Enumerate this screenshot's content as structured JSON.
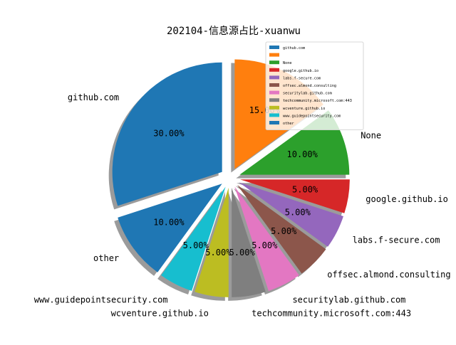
{
  "chart_data": {
    "type": "pie",
    "title": "202104-信息源占比-xuanwu",
    "slices": [
      {
        "label": "github.com",
        "value": 30.0,
        "pct_label": "30.00%",
        "color": "#1f77b4"
      },
      {
        "label": "other",
        "value": 10.0,
        "pct_label": "10.00%",
        "color": "#1f77b4"
      },
      {
        "label": "www.guidepointsecurity.com",
        "value": 5.0,
        "pct_label": "5.00%",
        "color": "#17becf"
      },
      {
        "label": "wcventure.github.io",
        "value": 5.0,
        "pct_label": "5.00%",
        "color": "#bcbd22"
      },
      {
        "label": "techcommunity.microsoft.com:443",
        "value": 5.0,
        "pct_label": "5.00%",
        "color": "#7f7f7f"
      },
      {
        "label": "securitylab.github.com",
        "value": 5.0,
        "pct_label": "5.00%",
        "color": "#e377c2"
      },
      {
        "label": "offsec.almond.consulting",
        "value": 5.0,
        "pct_label": "5.00%",
        "color": "#8c564b"
      },
      {
        "label": "labs.f-secure.com",
        "value": 5.0,
        "pct_label": "5.00%",
        "color": "#9467bd"
      },
      {
        "label": "google.github.io",
        "value": 5.0,
        "pct_label": "5.00%",
        "color": "#d62728"
      },
      {
        "label": "None",
        "value": 10.0,
        "pct_label": "10.00%",
        "color": "#2ca02c"
      },
      {
        "label": "",
        "value": 15.0,
        "pct_label": "15.00%",
        "color": "#ff7f0e"
      }
    ],
    "legend": {
      "placement": "top-right",
      "entries": [
        {
          "label": "github.com",
          "color": "#1f77b4"
        },
        {
          "label": "",
          "color": "#ff7f0e"
        },
        {
          "label": "None",
          "color": "#2ca02c"
        },
        {
          "label": "google.github.io",
          "color": "#d62728"
        },
        {
          "label": "labs.f-secure.com",
          "color": "#9467bd"
        },
        {
          "label": "offsec.almond.consulting",
          "color": "#8c564b"
        },
        {
          "label": "securitylab.github.com",
          "color": "#e377c2"
        },
        {
          "label": "techcommunity.microsoft.com:443",
          "color": "#7f7f7f"
        },
        {
          "label": "wcventure.github.io",
          "color": "#bcbd22"
        },
        {
          "label": "www.guidepointsecurity.com",
          "color": "#17becf"
        },
        {
          "label": "other",
          "color": "#1f77b4"
        }
      ]
    },
    "shadow": true,
    "exploded": true
  }
}
